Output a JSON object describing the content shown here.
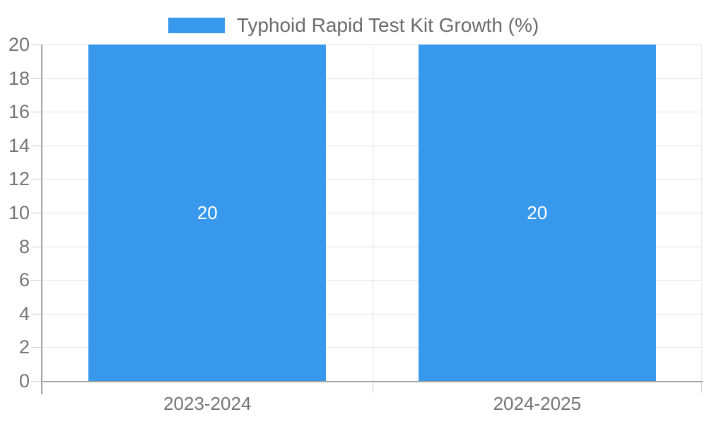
{
  "chart_data": {
    "type": "bar",
    "title": "Typhoid Rapid Test Kit Growth (%)",
    "legend_position": "top",
    "categories": [
      "2023-2024",
      "2024-2025"
    ],
    "values": [
      20,
      20
    ],
    "data_labels": [
      "20",
      "20"
    ],
    "ylim": [
      0,
      20
    ],
    "yticks": [
      0,
      2,
      4,
      6,
      8,
      10,
      12,
      14,
      16,
      18,
      20
    ],
    "grid": true,
    "bar_width_fraction": 0.72,
    "xlabel": "",
    "ylabel": "",
    "colors": {
      "bar": "#3898ec",
      "data_label": "#ffffff",
      "axis_text": "#757575",
      "legend_text": "#6b6b6b",
      "gridline": "#e4e4e4",
      "axis_line": "#a3a3a3",
      "tick": "#cccccc",
      "background": "#ffffff"
    }
  }
}
